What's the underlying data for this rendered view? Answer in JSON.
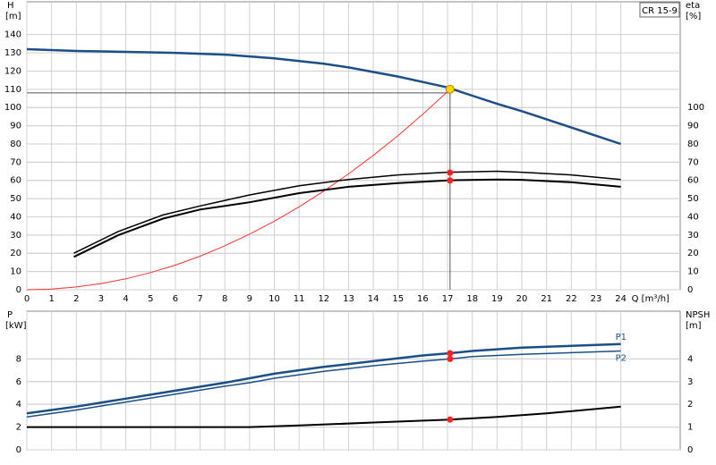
{
  "chart_data": [
    {
      "type": "line",
      "label": "CR 15-9",
      "xlabel": "Q [m³/h]",
      "ylabel": "H",
      "ylabel_unit": "[m]",
      "y2label": "eta",
      "y2label_unit": "[%]",
      "xlim": [
        0,
        26.4
      ],
      "xticks": [
        0,
        1,
        2,
        3,
        4,
        5,
        6,
        7,
        8,
        9,
        10,
        11,
        12,
        13,
        14,
        15,
        16,
        17,
        18,
        19,
        20,
        21,
        22,
        23,
        24
      ],
      "ylim": [
        0,
        158
      ],
      "yticks": [
        0,
        10,
        20,
        30,
        40,
        50,
        60,
        70,
        80,
        90,
        100,
        110,
        120,
        130,
        140
      ],
      "y2lim": [
        0,
        158
      ],
      "y2ticks": [
        0,
        10,
        20,
        30,
        40,
        50,
        60,
        70,
        80,
        90,
        100
      ],
      "grid": true,
      "series": [
        {
          "color": "#1c4f8a",
          "width": 2.5,
          "x": [
            0,
            2,
            4,
            6,
            8,
            9,
            10,
            11,
            12,
            13,
            14,
            15,
            16,
            17,
            18,
            19,
            20,
            21,
            22,
            23,
            24
          ],
          "values": [
            132,
            131,
            130.5,
            130,
            129,
            128,
            127,
            125.5,
            124,
            122,
            119.5,
            117,
            114,
            111,
            106.5,
            102,
            98,
            93.5,
            89,
            84.5,
            80
          ]
        },
        {
          "color": "#ff3030",
          "width": 1,
          "x": [
            0,
            1,
            2,
            3,
            4,
            5,
            6,
            7,
            8,
            9,
            10,
            11,
            12,
            13,
            14,
            15,
            16,
            17,
            17.1
          ],
          "values": [
            0,
            0.4,
            1.5,
            3.4,
            6,
            9.4,
            13.5,
            18.4,
            24.1,
            30.5,
            37.6,
            45.5,
            54.1,
            63.6,
            73.7,
            84.6,
            96.3,
            108.7,
            110
          ]
        },
        {
          "color": "#000000",
          "width": 1.5,
          "axis": "y2",
          "x": [
            1.9,
            3.7,
            5.5,
            7,
            9,
            11,
            13,
            15,
            17,
            19,
            20,
            22,
            24
          ],
          "values": [
            20,
            32,
            41,
            46,
            52,
            57,
            60.5,
            63,
            64.5,
            65,
            64.5,
            63,
            60.5
          ]
        },
        {
          "color": "#000000",
          "width": 2,
          "axis": "y2",
          "x": [
            1.9,
            3.7,
            5.5,
            7,
            9,
            11,
            13,
            15,
            17,
            19,
            20,
            22,
            24
          ],
          "values": [
            18,
            30,
            39,
            44,
            48,
            53,
            56.5,
            58.5,
            60,
            60.5,
            60.3,
            59,
            56.5
          ]
        }
      ],
      "points": [
        {
          "x": 17.1,
          "y": 64.3,
          "color": "#ff2020",
          "axis": "y2"
        },
        {
          "x": 17.1,
          "y": 60,
          "color": "#ff2020",
          "axis": "y2"
        },
        {
          "x": 17.1,
          "y": 110,
          "color": "#ffd700"
        }
      ],
      "duty_point": {
        "x": 17.1,
        "y": 108
      }
    },
    {
      "type": "line",
      "ylabel": "P",
      "ylabel_unit": "[kW]",
      "y2label": "NPSH",
      "y2label_unit": "[m]",
      "xlim": [
        0,
        26.4
      ],
      "ylim": [
        0,
        12.2
      ],
      "yticks": [
        0,
        2,
        4,
        6,
        8
      ],
      "y2lim": [
        0,
        6.1
      ],
      "y2ticks": [
        0,
        1,
        2,
        3,
        4
      ],
      "grid": true,
      "series": [
        {
          "name": "P1",
          "color": "#1c4f8a",
          "width": 2.5,
          "x": [
            0,
            2,
            4,
            6,
            8,
            9,
            10,
            12,
            14,
            16,
            17.1,
            18,
            20,
            22,
            24
          ],
          "values": [
            3.2,
            3.8,
            4.5,
            5.2,
            5.9,
            6.3,
            6.7,
            7.3,
            7.8,
            8.3,
            8.5,
            8.7,
            9,
            9.15,
            9.3
          ]
        },
        {
          "name": "P2",
          "color": "#1c4f8a",
          "width": 1.5,
          "x": [
            0,
            2,
            4,
            6,
            8,
            9,
            10,
            12,
            14,
            16,
            17.1,
            18,
            20,
            22,
            24
          ],
          "values": [
            2.9,
            3.5,
            4.2,
            4.9,
            5.6,
            5.9,
            6.3,
            6.9,
            7.4,
            7.8,
            8,
            8.2,
            8.4,
            8.55,
            8.7
          ]
        },
        {
          "color": "#000000",
          "width": 2,
          "axis": "y2",
          "x": [
            0,
            4,
            9,
            11,
            14,
            17.1,
            19,
            21,
            24
          ],
          "values": [
            1,
            1,
            1,
            1.07,
            1.2,
            1.33,
            1.45,
            1.6,
            1.9
          ]
        }
      ],
      "points": [
        {
          "x": 17.1,
          "y": 8.5,
          "color": "#ff2020"
        },
        {
          "x": 17.1,
          "y": 8,
          "color": "#ff2020"
        },
        {
          "x": 17.1,
          "y": 1.33,
          "color": "#ff2020",
          "axis": "y2"
        }
      ]
    }
  ]
}
